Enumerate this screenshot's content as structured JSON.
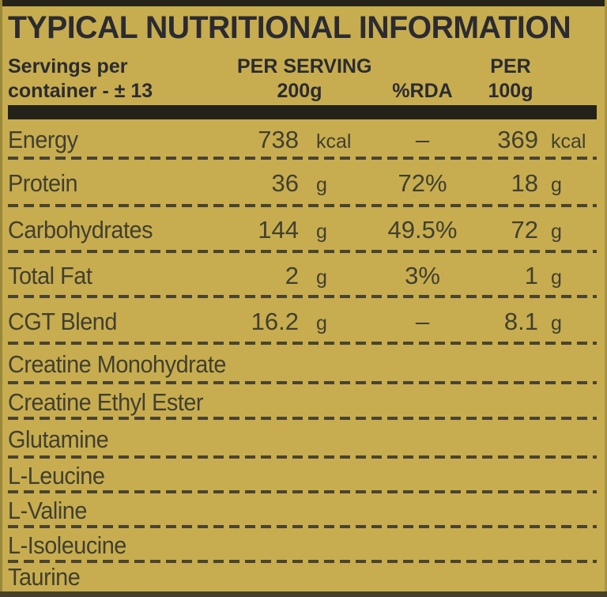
{
  "title": "TYPICAL NUTRITIONAL INFORMATION",
  "header": {
    "servings_line1": "Servings per",
    "servings_line2": "container - ± 13",
    "per_serving_line1": "PER SERVING",
    "per_serving_line2": "200g",
    "rda": "%RDA",
    "per100_line1": "PER",
    "per100_line2": "100g"
  },
  "table": {
    "rows": [
      {
        "label": "Energy",
        "per_serving": "738",
        "unit1": "kcal",
        "rda": "–",
        "per_100": "369",
        "unit2": "kcal"
      },
      {
        "label": "Protein",
        "per_serving": "36",
        "unit1": "g",
        "rda": "72%",
        "per_100": "18",
        "unit2": "g"
      },
      {
        "label": "Carbohydrates",
        "per_serving": "144",
        "unit1": "g",
        "rda": "49.5%",
        "per_100": "72",
        "unit2": "g"
      },
      {
        "label": "Total Fat",
        "per_serving": "2",
        "unit1": "g",
        "rda": "3%",
        "per_100": "1",
        "unit2": "g"
      },
      {
        "label": "CGT Blend",
        "per_serving": "16.2",
        "unit1": "g",
        "rda": "–",
        "per_100": "8.1",
        "unit2": "g"
      }
    ]
  },
  "ingredients": [
    {
      "name": "Creatine Monohydrate"
    },
    {
      "name": "Creatine Ethyl Ester"
    },
    {
      "name": "Glutamine"
    },
    {
      "name": "L-Leucine"
    },
    {
      "name": "L-Valine"
    },
    {
      "name": "L-Isoleucine"
    },
    {
      "name": "Taurine"
    }
  ],
  "colors": {
    "background": "#c7ad4f",
    "top_bar": "#262419",
    "divider_bar": "#23221a",
    "bottom_bar": "#46402a",
    "title_text": "#2b2b31",
    "row_text": "#413f30",
    "dash": "#494331"
  }
}
